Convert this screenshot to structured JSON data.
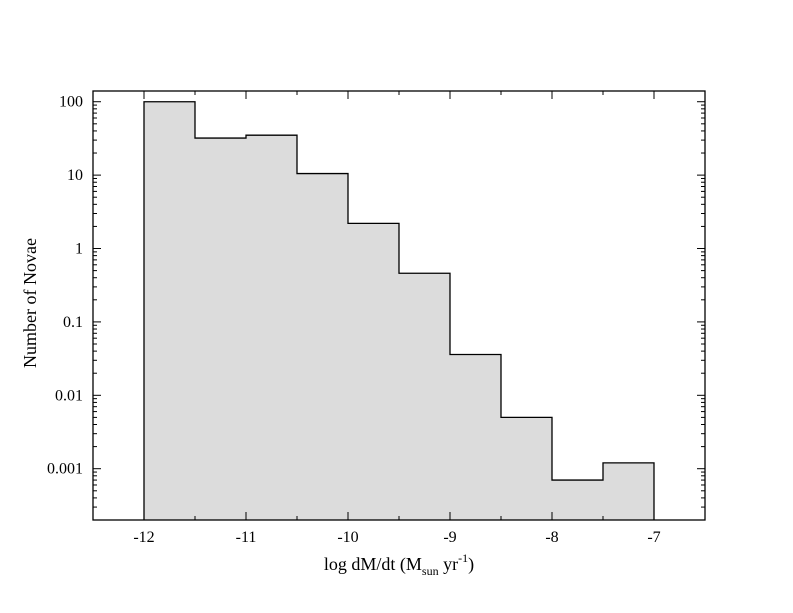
{
  "chart_data": {
    "type": "bar",
    "subtype": "histogram",
    "xlabel": {
      "prefix": "log dM/dt (M",
      "subscript": "sun",
      "middle": " yr",
      "superscript": "-1",
      "suffix": ")"
    },
    "ylabel": "Number of Novae",
    "xlim": [
      -12.5,
      -6.5
    ],
    "ylim": [
      0.0002,
      140
    ],
    "yscale": "log",
    "grid": false,
    "legend": "none",
    "x_ticks": [
      -12,
      -11,
      -10,
      -9,
      -8,
      -7
    ],
    "x_tick_labels": [
      "-12",
      "-11",
      "-10",
      "-9",
      "-8",
      "-7"
    ],
    "y_ticks": [
      100,
      10,
      1,
      0.1,
      0.01,
      0.001
    ],
    "y_tick_labels": [
      "100",
      "10",
      "1",
      "0.1",
      "0.01",
      "0.001"
    ],
    "bin_edges": [
      -12,
      -11.5,
      -11,
      -10.5,
      -10,
      -9.5,
      -9,
      -8.5,
      -8,
      -7.5,
      -7
    ],
    "values": [
      100,
      32,
      35,
      10.5,
      2.2,
      0.46,
      0.036,
      0.005,
      0.0007,
      0.0012
    ],
    "fill_color": "#dcdcdc",
    "line_color": "#000000"
  }
}
